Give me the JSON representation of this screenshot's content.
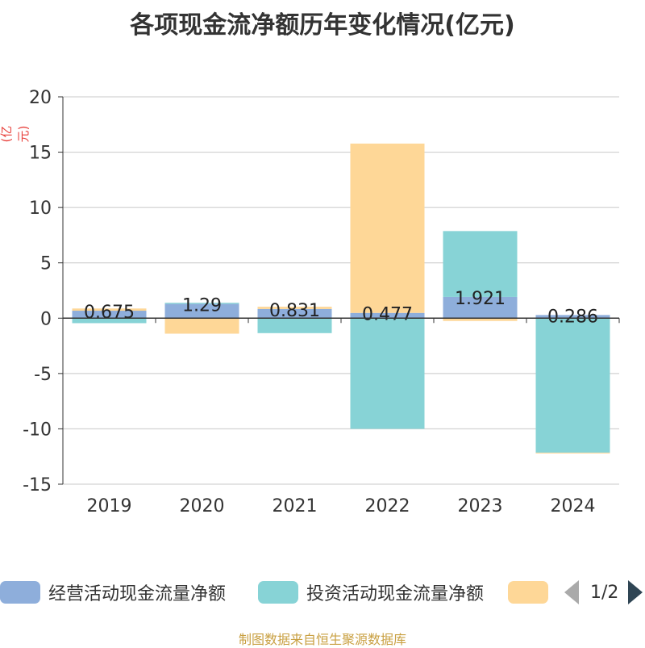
{
  "title": "各项现金流净额历年变化情况(亿元)",
  "unit_label": "(亿元)",
  "source": "制图数据来自恒生聚源数据库",
  "legend": {
    "items": [
      {
        "name": "经营活动现金流量净额",
        "color": "#8eaedb"
      },
      {
        "name": "投资活动现金流量净额",
        "color": "#87d3d6"
      },
      {
        "name": "",
        "color": "#fed797"
      }
    ],
    "page": "1/2"
  },
  "chart_data": {
    "type": "bar",
    "stacked": true,
    "categories": [
      "2019",
      "2020",
      "2021",
      "2022",
      "2023",
      "2024"
    ],
    "series": [
      {
        "name": "经营活动现金流量净额",
        "color": "#8eaedb",
        "values": [
          0.675,
          1.29,
          0.831,
          0.477,
          1.921,
          0.286
        ]
      },
      {
        "name": "投资活动现金流量净额",
        "color": "#87d3d6",
        "values": [
          -0.45,
          0.1,
          -1.35,
          -10.0,
          5.95,
          -12.15
        ]
      },
      {
        "name": "",
        "color": "#fed797",
        "values": [
          0.2,
          -1.4,
          0.2,
          15.3,
          -0.25,
          -0.05
        ]
      }
    ],
    "data_labels": [
      "0.675",
      "1.29",
      "0.831",
      "0.477",
      "1.921",
      "0.286"
    ],
    "ylim": [
      -15,
      20
    ],
    "yticks": [
      20,
      15,
      10,
      5,
      0,
      -5,
      -10,
      -15
    ],
    "grid": true,
    "legend_position": "bottom"
  }
}
